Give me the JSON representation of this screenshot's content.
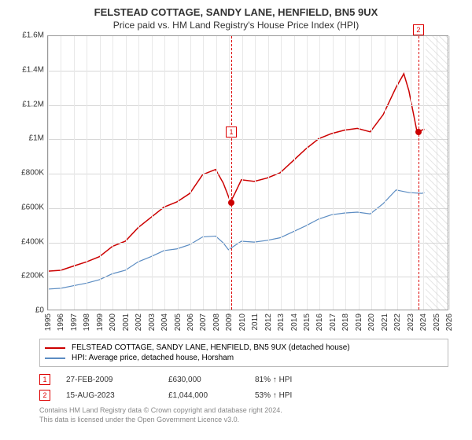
{
  "title": "FELSTEAD COTTAGE, SANDY LANE, HENFIELD, BN5 9UX",
  "subtitle": "Price paid vs. HM Land Registry's House Price Index (HPI)",
  "chart": {
    "type": "line",
    "background_color": "#ffffff",
    "grid_color": "#d8d8d8",
    "xlim": [
      1995,
      2026
    ],
    "ylim": [
      0,
      1600000
    ],
    "ytick_step": 200000,
    "yticks": [
      "£0",
      "£200K",
      "£400K",
      "£600K",
      "£800K",
      "£1M",
      "£1.2M",
      "£1.4M",
      "£1.6M"
    ],
    "xticks": [
      1995,
      1996,
      1997,
      1998,
      1999,
      2000,
      2001,
      2002,
      2003,
      2004,
      2005,
      2006,
      2007,
      2008,
      2009,
      2010,
      2011,
      2012,
      2013,
      2014,
      2015,
      2016,
      2017,
      2018,
      2019,
      2020,
      2021,
      2022,
      2023,
      2024,
      2025,
      2026
    ],
    "future_hatch_from": 2024.2,
    "series": [
      {
        "name": "FELSTEAD COTTAGE, SANDY LANE, HENFIELD, BN5 9UX (detached house)",
        "color": "#cc0000",
        "line_width": 1.5,
        "data": [
          [
            1995,
            225000
          ],
          [
            1996,
            230000
          ],
          [
            1997,
            255000
          ],
          [
            1998,
            280000
          ],
          [
            1999,
            310000
          ],
          [
            2000,
            370000
          ],
          [
            2001,
            400000
          ],
          [
            2002,
            480000
          ],
          [
            2003,
            540000
          ],
          [
            2004,
            600000
          ],
          [
            2005,
            630000
          ],
          [
            2006,
            680000
          ],
          [
            2007,
            790000
          ],
          [
            2008,
            820000
          ],
          [
            2008.6,
            740000
          ],
          [
            2009.16,
            630000
          ],
          [
            2009.5,
            680000
          ],
          [
            2010,
            760000
          ],
          [
            2011,
            750000
          ],
          [
            2012,
            770000
          ],
          [
            2013,
            800000
          ],
          [
            2014,
            870000
          ],
          [
            2015,
            940000
          ],
          [
            2016,
            1000000
          ],
          [
            2017,
            1030000
          ],
          [
            2018,
            1050000
          ],
          [
            2019,
            1060000
          ],
          [
            2020,
            1040000
          ],
          [
            2021,
            1140000
          ],
          [
            2022,
            1300000
          ],
          [
            2022.6,
            1380000
          ],
          [
            2023,
            1280000
          ],
          [
            2023.62,
            1044000
          ],
          [
            2024,
            1050000
          ],
          [
            2024.2,
            1055000
          ]
        ]
      },
      {
        "name": "HPI: Average price, detached house, Horsham",
        "color": "#5b8cc2",
        "line_width": 1.2,
        "data": [
          [
            1995,
            120000
          ],
          [
            1996,
            125000
          ],
          [
            1997,
            140000
          ],
          [
            1998,
            155000
          ],
          [
            1999,
            175000
          ],
          [
            2000,
            210000
          ],
          [
            2001,
            230000
          ],
          [
            2002,
            280000
          ],
          [
            2003,
            310000
          ],
          [
            2004,
            345000
          ],
          [
            2005,
            355000
          ],
          [
            2006,
            380000
          ],
          [
            2007,
            425000
          ],
          [
            2008,
            430000
          ],
          [
            2008.6,
            390000
          ],
          [
            2009,
            350000
          ],
          [
            2010,
            400000
          ],
          [
            2011,
            395000
          ],
          [
            2012,
            405000
          ],
          [
            2013,
            420000
          ],
          [
            2014,
            455000
          ],
          [
            2015,
            490000
          ],
          [
            2016,
            530000
          ],
          [
            2017,
            555000
          ],
          [
            2018,
            565000
          ],
          [
            2019,
            570000
          ],
          [
            2020,
            560000
          ],
          [
            2021,
            620000
          ],
          [
            2022,
            700000
          ],
          [
            2023,
            685000
          ],
          [
            2024,
            680000
          ],
          [
            2024.2,
            685000
          ]
        ]
      }
    ],
    "markers": [
      {
        "n": "1",
        "x": 2009.16,
        "y": 630000,
        "box_y_offset": -90,
        "dot_color": "#cc0000"
      },
      {
        "n": "2",
        "x": 2023.62,
        "y": 1044000,
        "box_y_offset": -130,
        "dot_color": "#cc0000"
      }
    ]
  },
  "legend": {
    "items": [
      {
        "color": "#cc0000",
        "label": "FELSTEAD COTTAGE, SANDY LANE, HENFIELD, BN5 9UX (detached house)"
      },
      {
        "color": "#5b8cc2",
        "label": "HPI: Average price, detached house, Horsham"
      }
    ]
  },
  "transactions": [
    {
      "n": "1",
      "date": "27-FEB-2009",
      "price": "£630,000",
      "pct": "81% ↑ HPI"
    },
    {
      "n": "2",
      "date": "15-AUG-2023",
      "price": "£1,044,000",
      "pct": "53% ↑ HPI"
    }
  ],
  "footer": [
    "Contains HM Land Registry data © Crown copyright and database right 2024.",
    "This data is licensed under the Open Government Licence v3.0."
  ]
}
